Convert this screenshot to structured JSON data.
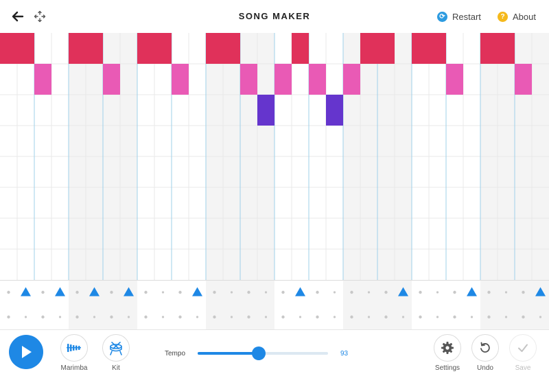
{
  "header": {
    "title": "SONG MAKER",
    "restart_label": "Restart",
    "about_label": "About",
    "restart_icon_glyph": "⟳",
    "about_icon_glyph": "?"
  },
  "grid": {
    "columns": 32,
    "melody_rows": 8,
    "beats_per_bar": 4,
    "colors": {
      "row_0": "#e0315a",
      "row_1": "#e95ab5",
      "row_2": "#6535cd",
      "rhythm_triangle": "#1e88e5",
      "beat_line": "#9fd0ea",
      "sub_line": "#e8e8e8",
      "shade": "#f4f4f4"
    },
    "shaded_bars": [
      1,
      3,
      5,
      7
    ],
    "melody_notes": [
      {
        "row": 0,
        "cols": [
          0,
          1,
          4,
          5,
          8,
          9,
          12,
          13,
          17,
          21,
          22,
          24,
          25,
          28,
          29
        ]
      },
      {
        "row": 1,
        "cols": [
          2,
          6,
          10,
          14,
          16,
          18,
          20,
          26,
          30
        ]
      },
      {
        "row": 2,
        "cols": [
          15,
          19
        ]
      }
    ],
    "rhythm_triangles": [
      1,
      3,
      5,
      7,
      11,
      17,
      23,
      27,
      31
    ]
  },
  "toolbar": {
    "instrument_label": "Marimba",
    "kit_label": "Kit",
    "tempo_label": "Tempo",
    "tempo_value": "93",
    "tempo_fraction": 0.47,
    "settings_label": "Settings",
    "undo_label": "Undo",
    "save_label": "Save"
  },
  "icons": {
    "back": "arrow-left-icon",
    "move": "move-arrows-icon",
    "play": "play-icon",
    "instrument": "marimba-icon",
    "kit": "drum-kit-icon",
    "settings": "gear-icon",
    "undo": "undo-icon",
    "save": "check-icon"
  }
}
